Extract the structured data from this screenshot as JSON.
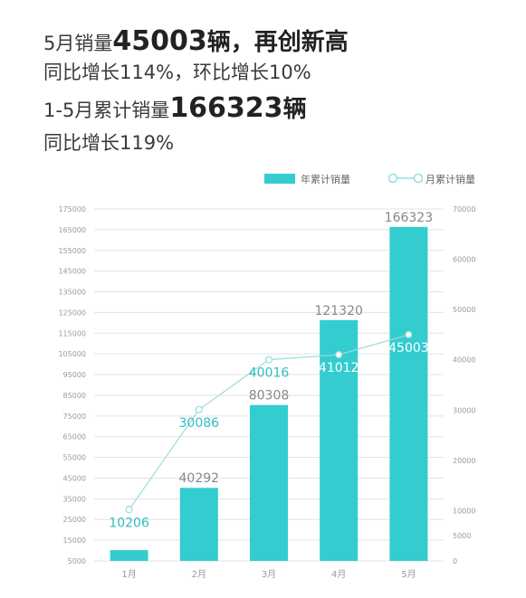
{
  "headlines": {
    "line1": {
      "prefix": "5月销量",
      "number": "45003",
      "unit": "辆",
      "suffix": "，再创新高"
    },
    "line2": "同比增长114%，环比增长10%",
    "line3": {
      "prefix": "1-5月累计销量",
      "number": "166323",
      "unit": "辆"
    },
    "line4": "同比增长119%"
  },
  "chart_data": {
    "type": "bar",
    "categories": [
      "1月",
      "2月",
      "3月",
      "4月",
      "5月"
    ],
    "series": [
      {
        "name": "年累计销量",
        "type": "bar",
        "axis": "left",
        "values": [
          10206,
          40292,
          80308,
          121320,
          166323
        ],
        "labels": [
          "",
          "40292",
          "80308",
          "121320",
          "166323"
        ]
      },
      {
        "name": "月累计销量",
        "type": "line",
        "axis": "right",
        "values": [
          10206,
          30086,
          40016,
          41012,
          45003
        ],
        "labels": [
          "10206",
          "30086",
          "40016",
          "41012",
          "45003"
        ]
      }
    ],
    "left_axis": {
      "ylim": [
        5000,
        175000
      ],
      "ticks": [
        5000,
        15000,
        25000,
        35000,
        45000,
        55000,
        65000,
        75000,
        85000,
        95000,
        105000,
        115000,
        125000,
        135000,
        145000,
        155000,
        165000,
        175000
      ]
    },
    "right_axis": {
      "ylim": [
        0,
        70000
      ],
      "ticks": [
        0,
        5000,
        10000,
        20000,
        30000,
        40000,
        50000,
        60000,
        70000
      ]
    },
    "legend_position": "top-right",
    "grid": true,
    "colors": {
      "bar": "#33cccf",
      "line": "#9adcdc",
      "line_label": "#2fbdc1",
      "bar_label": "#888888",
      "axis_text": "#9a9a9a",
      "grid": "#e3e3e3"
    }
  }
}
